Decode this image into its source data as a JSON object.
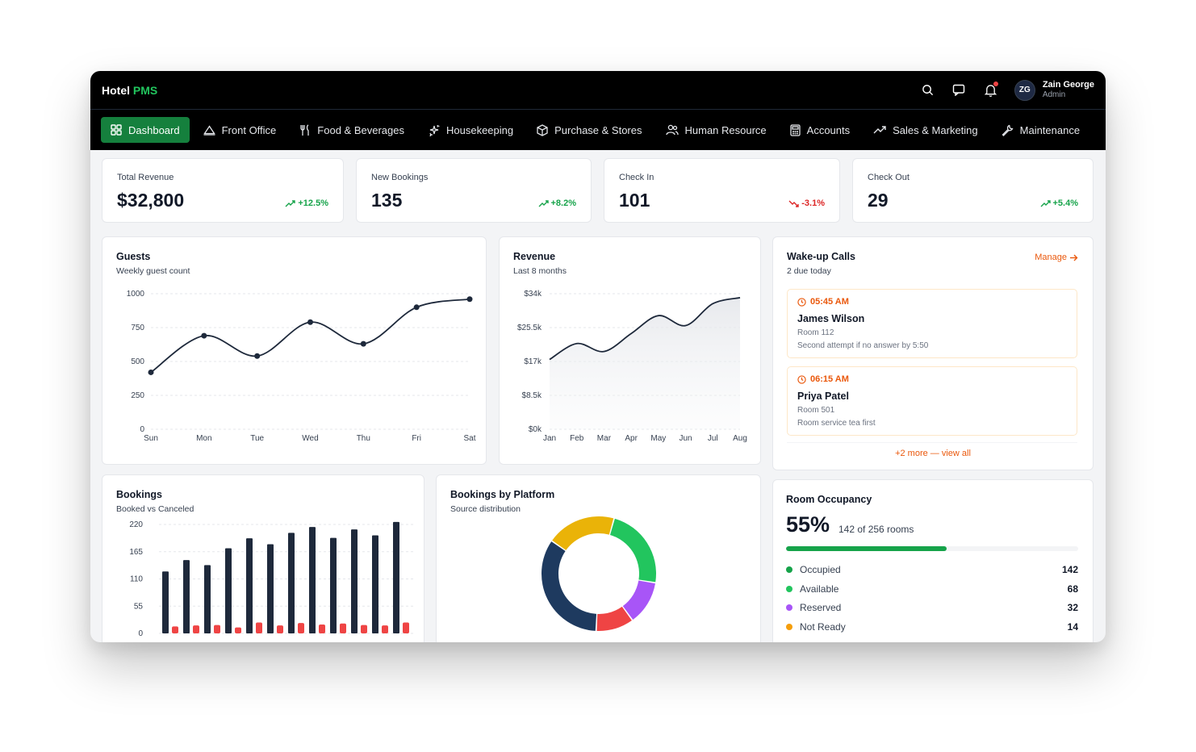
{
  "app": {
    "brand_main": "Hotel",
    "brand_accent": "PMS"
  },
  "user": {
    "initials": "ZG",
    "name": "Zain George",
    "role": "Admin"
  },
  "nav": [
    {
      "label": "Dashboard",
      "icon": "grid-icon",
      "active": true
    },
    {
      "label": "Front Office",
      "icon": "bell-desk-icon"
    },
    {
      "label": "Food & Beverages",
      "icon": "utensils-icon"
    },
    {
      "label": "Housekeeping",
      "icon": "sparkles-icon"
    },
    {
      "label": "Purchase & Stores",
      "icon": "package-icon"
    },
    {
      "label": "Human Resource",
      "icon": "users-icon"
    },
    {
      "label": "Accounts",
      "icon": "calculator-icon"
    },
    {
      "label": "Sales & Marketing",
      "icon": "trending-up-icon"
    },
    {
      "label": "Maintenance",
      "icon": "wrench-icon"
    }
  ],
  "stats": [
    {
      "label": "Total Revenue",
      "value": "$32,800",
      "delta": "+12.5%",
      "trend": "up"
    },
    {
      "label": "New Bookings",
      "value": "135",
      "delta": "+8.2%",
      "trend": "up"
    },
    {
      "label": "Check In",
      "value": "101",
      "delta": "-3.1%",
      "trend": "down"
    },
    {
      "label": "Check Out",
      "value": "29",
      "delta": "+5.4%",
      "trend": "up"
    }
  ],
  "guests": {
    "title": "Guests",
    "subtitle": "Weekly guest count"
  },
  "revenue": {
    "title": "Revenue",
    "subtitle": "Last 8 months"
  },
  "wakeup": {
    "title": "Wake-up Calls",
    "subtitle": "2 due today",
    "manage_label": "Manage",
    "calls": [
      {
        "time": "05:45 AM",
        "name": "James Wilson",
        "room": "Room 112",
        "note": "Second attempt if no answer by 5:50"
      },
      {
        "time": "06:15 AM",
        "name": "Priya Patel",
        "room": "Room 501",
        "note": "Room service tea first"
      }
    ],
    "view_all": "+2 more — view all"
  },
  "bookings": {
    "title": "Bookings",
    "subtitle": "Booked vs Canceled"
  },
  "platform": {
    "title": "Bookings by Platform",
    "subtitle": "Source distribution"
  },
  "occupancy": {
    "title": "Room Occupancy",
    "percent": "55%",
    "of_text": "142 of 256 rooms",
    "fill_fraction": 0.55,
    "items": [
      {
        "label": "Occupied",
        "value": "142",
        "color": "#16a34a"
      },
      {
        "label": "Available",
        "value": "68",
        "color": "#22c55e"
      },
      {
        "label": "Reserved",
        "value": "32",
        "color": "#a855f7"
      },
      {
        "label": "Not Ready",
        "value": "14",
        "color": "#f59e0b"
      }
    ]
  },
  "chart_data": [
    {
      "type": "line",
      "title": "Guests",
      "categories": [
        "Sun",
        "Mon",
        "Tue",
        "Wed",
        "Thu",
        "Fri",
        "Sat"
      ],
      "values": [
        420,
        690,
        540,
        790,
        630,
        900,
        960
      ],
      "yticks": [
        0,
        250,
        500,
        750,
        1000
      ],
      "ylim": [
        0,
        1000
      ],
      "grid": true,
      "color": "#1e293b"
    },
    {
      "type": "area",
      "title": "Revenue",
      "categories": [
        "Jan",
        "Feb",
        "Mar",
        "Apr",
        "May",
        "Jun",
        "Jul",
        "Aug"
      ],
      "values": [
        17500,
        21500,
        19500,
        24000,
        28500,
        26000,
        31500,
        33000
      ],
      "ytick_labels": [
        "$0k",
        "$8.5k",
        "$17k",
        "$25.5k",
        "$34k"
      ],
      "yticks": [
        0,
        8500,
        17000,
        25500,
        34000
      ],
      "ylim": [
        0,
        34000
      ],
      "grid": true,
      "color": "#1e293b"
    },
    {
      "type": "bar",
      "title": "Bookings",
      "categories": [
        "",
        "",
        "",
        "",
        "",
        "",
        "",
        "",
        "",
        "",
        "",
        ""
      ],
      "series": [
        {
          "name": "Booked",
          "values": [
            125,
            148,
            138,
            172,
            192,
            180,
            203,
            215,
            193,
            210,
            198,
            225
          ],
          "color": "#1e293b"
        },
        {
          "name": "Canceled",
          "values": [
            14,
            16,
            17,
            12,
            22,
            16,
            21,
            18,
            20,
            17,
            16,
            22
          ],
          "color": "#ef4444"
        }
      ],
      "yticks": [
        0,
        55,
        110,
        165,
        220
      ],
      "ylim": [
        0,
        220
      ],
      "grid": true
    },
    {
      "type": "pie",
      "title": "Bookings by Platform",
      "donut": true,
      "slices": [
        {
          "value": 22,
          "color": "#eab308"
        },
        {
          "value": 26,
          "color": "#22c55e"
        },
        {
          "value": 14,
          "color": "#a855f7"
        },
        {
          "value": 12,
          "color": "#ef4444"
        },
        {
          "value": 38,
          "color": "#1e3a5f"
        }
      ]
    }
  ]
}
